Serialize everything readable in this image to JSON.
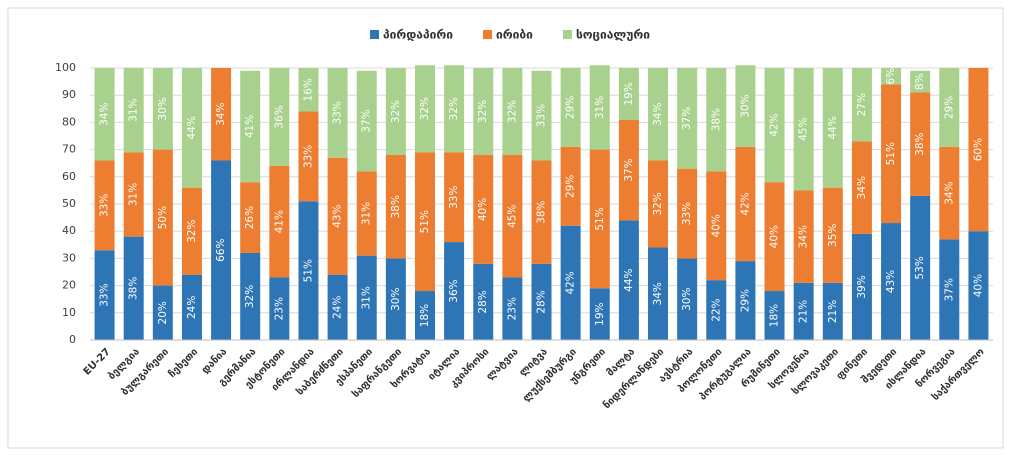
{
  "chart_data": {
    "type": "stacked_bar",
    "categories": [
      "EU-27",
      "ბელგია",
      "ბულგარეთი",
      "ჩეხეთი",
      "დანია",
      "გერმანია",
      "ესტონეთი",
      "ირლანდია",
      "საბერძნეთი",
      "ესპანეთი",
      "საფრანგეთი",
      "ხორვატია",
      "იტალია",
      "კვიპროსი",
      "ლატვია",
      "ლიტვა",
      "ლუქსემბურგი",
      "უნგრეთი",
      "მალტა",
      "ნიდერლანდები",
      "ავსტრია",
      "პოლონეთი",
      "პორტუგალია",
      "რუმინეთი",
      "სლოვენია",
      "სლოვაკეთი",
      "ფინეთი",
      "შვედეთი",
      "ისლანდია",
      "ნორვეგია",
      "საქართველო"
    ],
    "series": [
      {
        "name": "პირდაპირი",
        "color": "#2e75b6",
        "values": [
          33,
          38,
          20,
          24,
          66,
          32,
          23,
          51,
          24,
          31,
          30,
          18,
          36,
          28,
          23,
          28,
          42,
          19,
          44,
          34,
          30,
          22,
          29,
          18,
          21,
          21,
          39,
          43,
          53,
          37,
          40
        ],
        "value_labels": [
          "33%",
          "38%",
          "20%",
          "24%",
          "66%",
          "32%",
          "23%",
          "51%",
          "24%",
          "31%",
          "30%",
          "18%",
          "36%",
          "28%",
          "23%",
          "28%",
          "42%",
          "19%",
          "44%",
          "34%",
          "30%",
          "22%",
          "29%",
          "18%",
          "21%",
          "21%",
          "39%",
          "43%",
          "53%",
          "37%",
          "40%"
        ]
      },
      {
        "name": "ირიბი",
        "color": "#ed7d31",
        "values": [
          33,
          31,
          50,
          32,
          34,
          26,
          41,
          33,
          43,
          31,
          38,
          51,
          33,
          40,
          45,
          38,
          29,
          51,
          37,
          32,
          33,
          40,
          42,
          40,
          34,
          35,
          34,
          51,
          38,
          34,
          60
        ],
        "value_labels": [
          "33%",
          "31%",
          "50%",
          "32%",
          "34%",
          "26%",
          "41%",
          "33%",
          "43%",
          "31%",
          "38%",
          "51%",
          "33%",
          "40%",
          "45%",
          "38%",
          "29%",
          "51%",
          "37%",
          "32%",
          "33%",
          "40%",
          "42%",
          "40%",
          "34%",
          "35%",
          "34%",
          "51%",
          "38%",
          "34%",
          "60%"
        ]
      },
      {
        "name": "სოციალური",
        "color": "#a9d18e",
        "values": [
          34,
          31,
          30,
          44,
          null,
          41,
          36,
          16,
          33,
          37,
          32,
          32,
          32,
          32,
          32,
          33,
          29,
          31,
          19,
          34,
          37,
          38,
          30,
          42,
          45,
          44,
          27,
          6,
          8,
          29,
          null
        ],
        "value_labels": [
          "34%",
          "31%",
          "30%",
          "44%",
          null,
          "41%",
          "36%",
          "16%",
          "33%",
          "37%",
          "32%",
          "32%",
          "32%",
          "32%",
          "32%",
          "33%",
          "29%",
          "31%",
          "19%",
          "34%",
          "37%",
          "38%",
          "30%",
          "42%",
          "45%",
          "44%",
          "27%",
          "6%",
          "8%",
          "29%",
          null
        ]
      }
    ],
    "ylim": [
      0,
      100
    ],
    "yticks": [
      0,
      10,
      20,
      30,
      40,
      50,
      60,
      70,
      80,
      90,
      100
    ],
    "grid": true
  }
}
